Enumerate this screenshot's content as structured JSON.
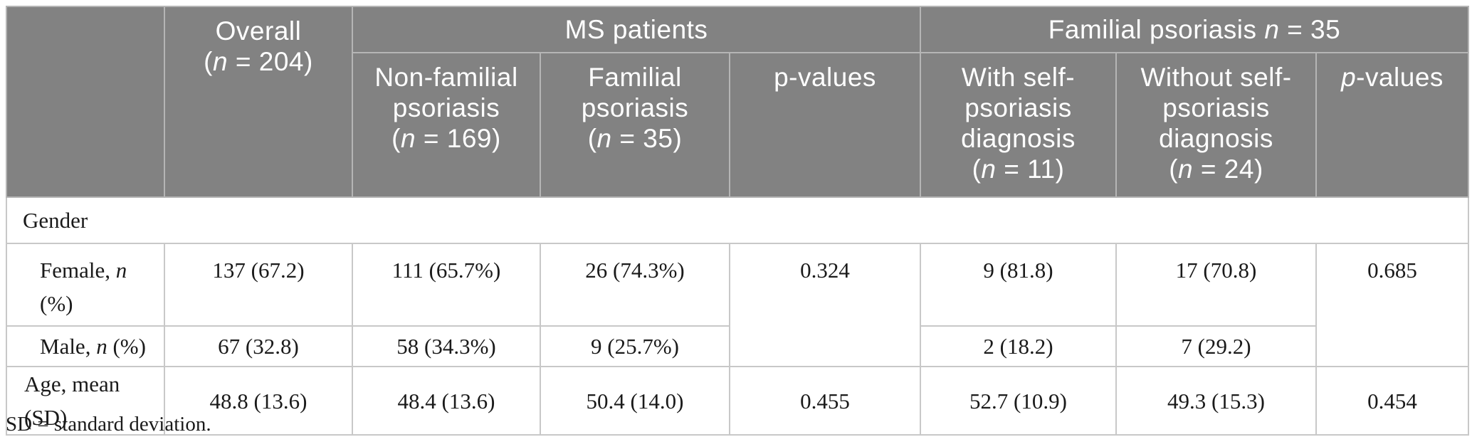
{
  "colors": {
    "header_bg": "#828282",
    "header_text": "#ffffff",
    "header_border": "#b5b5b5",
    "body_border": "#c8c8c8",
    "body_text": "#1a1a1a"
  },
  "table": {
    "header": {
      "corner": "",
      "overall": [
        {
          "t": "Overall"
        },
        {
          "br": true
        },
        {
          "t": "("
        },
        {
          "t": "n",
          "i": true
        },
        {
          "t": " = 204)"
        }
      ],
      "ms_patients": "MS patients",
      "familial_group": [
        {
          "t": "Familial psoriasis "
        },
        {
          "t": "n",
          "i": true
        },
        {
          "t": " = 35"
        }
      ],
      "non_familial": [
        {
          "t": "Non-familial"
        },
        {
          "br": true
        },
        {
          "t": "psoriasis"
        },
        {
          "br": true
        },
        {
          "t": "("
        },
        {
          "t": "n",
          "i": true
        },
        {
          "t": " = 169)"
        }
      ],
      "familial": [
        {
          "t": "Familial"
        },
        {
          "br": true
        },
        {
          "t": "psoriasis"
        },
        {
          "br": true
        },
        {
          "t": "("
        },
        {
          "t": "n",
          "i": true
        },
        {
          "t": " = 35)"
        }
      ],
      "p_values_ms": [
        {
          "t": "p-values"
        }
      ],
      "with_self": [
        {
          "t": "With self-"
        },
        {
          "br": true
        },
        {
          "t": "psoriasis"
        },
        {
          "br": true
        },
        {
          "t": "diagnosis"
        },
        {
          "br": true
        },
        {
          "t": "("
        },
        {
          "t": "n",
          "i": true
        },
        {
          "t": " = 11)"
        }
      ],
      "without_self": [
        {
          "t": "Without self-"
        },
        {
          "br": true
        },
        {
          "t": "psoriasis"
        },
        {
          "br": true
        },
        {
          "t": "diagnosis"
        },
        {
          "br": true
        },
        {
          "t": "("
        },
        {
          "t": "n",
          "i": true
        },
        {
          "t": " = 24)"
        }
      ],
      "p_values_familial": [
        {
          "t": "p",
          "i": true
        },
        {
          "t": "-values"
        }
      ]
    },
    "rows": {
      "gender_section_label": "Gender",
      "female": {
        "label": [
          {
            "t": "Female, "
          },
          {
            "t": "n",
            "i": true
          },
          {
            "br": true
          },
          {
            "t": "(%)"
          }
        ],
        "overall": "137 (67.2)",
        "non_familial": "111 (65.7%)",
        "familial": "26 (74.3%)",
        "p_ms": "0.324",
        "with_self": "9 (81.8)",
        "without_self": "17 (70.8)",
        "p_familial": "0.685"
      },
      "male": {
        "label": [
          {
            "t": "Male, "
          },
          {
            "t": "n",
            "i": true
          },
          {
            "t": " (%)"
          }
        ],
        "overall": "67 (32.8)",
        "non_familial": "58 (34.3%)",
        "familial": "9 (25.7%)",
        "with_self": "2 (18.2)",
        "without_self": "7 (29.2)"
      },
      "age": {
        "label": [
          {
            "t": "Age, mean (SD)"
          }
        ],
        "overall": "48.8 (13.6)",
        "non_familial": "48.4 (13.6)",
        "familial": "50.4 (14.0)",
        "p_ms": "0.455",
        "with_self": "52.7 (10.9)",
        "without_self": "49.3 (15.3)",
        "p_familial": "0.454"
      }
    },
    "footnote": "SD = standard deviation."
  }
}
